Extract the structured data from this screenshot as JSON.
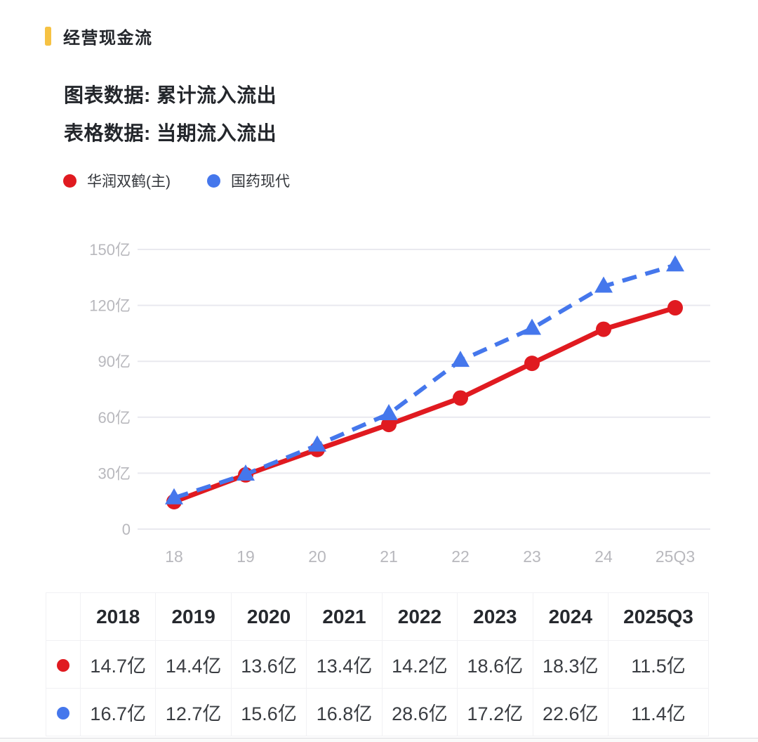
{
  "header": {
    "title": "经营现金流",
    "accent_color": "#f6c243",
    "chart_note": "图表数据: 累计流入流出",
    "table_note": "表格数据: 当期流入流出"
  },
  "legend": {
    "items": [
      {
        "label": "华润双鹤(主)",
        "color": "#e01a20"
      },
      {
        "label": "国药现代",
        "color": "#4577ec"
      }
    ]
  },
  "chart_data": {
    "type": "line",
    "x_categories": [
      "18",
      "19",
      "20",
      "21",
      "22",
      "23",
      "24",
      "25Q3"
    ],
    "y_unit": "亿",
    "yticks": [
      0,
      30,
      60,
      90,
      120,
      150
    ],
    "ytick_labels": [
      "0",
      "30亿",
      "60亿",
      "90亿",
      "120亿",
      "150亿"
    ],
    "ylim": [
      0,
      150
    ],
    "grid": true,
    "legend_position": "top-left",
    "grid_color": "#e9e9ef",
    "axis_label_color": "#b8b8bd",
    "series": [
      {
        "name": "华润双鹤(主)",
        "color": "#e01a20",
        "line_style": "solid",
        "marker": "circle",
        "values": [
          14.7,
          29.1,
          42.7,
          56.1,
          70.3,
          88.9,
          107.2,
          118.7
        ]
      },
      {
        "name": "国药现代",
        "color": "#4577ec",
        "line_style": "dashed",
        "marker": "triangle",
        "values": [
          16.7,
          29.4,
          45.0,
          61.8,
          90.4,
          107.6,
          130.2,
          141.6
        ]
      }
    ]
  },
  "table": {
    "columns": [
      "2018",
      "2019",
      "2020",
      "2021",
      "2022",
      "2023",
      "2024",
      "2025Q3"
    ],
    "rows": [
      {
        "series": "华润双鹤(主)",
        "marker_color": "#e01a20",
        "values": [
          "14.7亿",
          "14.4亿",
          "13.6亿",
          "13.4亿",
          "14.2亿",
          "18.6亿",
          "18.3亿",
          "11.5亿"
        ]
      },
      {
        "series": "国药现代",
        "marker_color": "#4577ec",
        "values": [
          "16.7亿",
          "12.7亿",
          "15.6亿",
          "16.8亿",
          "28.6亿",
          "17.2亿",
          "22.6亿",
          "11.4亿"
        ]
      }
    ]
  }
}
